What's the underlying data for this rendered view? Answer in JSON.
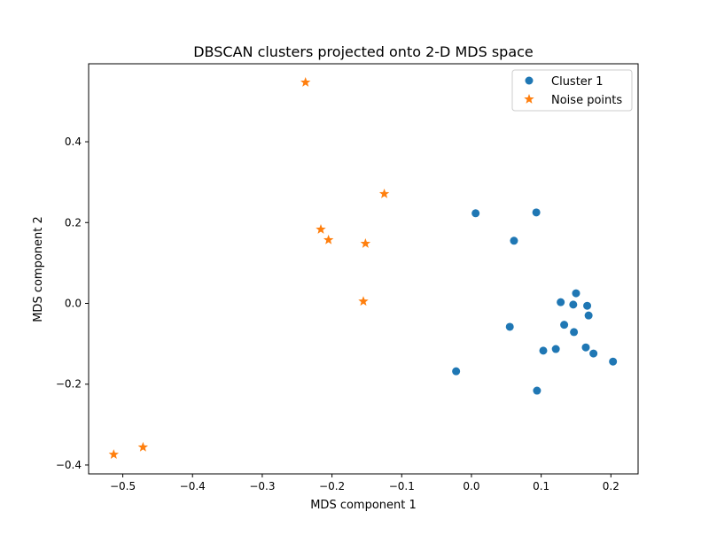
{
  "chart_data": {
    "type": "scatter",
    "title": "DBSCAN clusters projected onto 2-D MDS space",
    "xlabel": "MDS component 1",
    "ylabel": "MDS component 2",
    "xlim": [
      -0.549,
      0.239
    ],
    "ylim": [
      -0.422,
      0.593
    ],
    "xticks": [
      -0.5,
      -0.4,
      -0.3,
      -0.2,
      -0.1,
      0.0,
      0.1,
      0.2
    ],
    "xtick_labels": [
      "−0.5",
      "−0.4",
      "−0.3",
      "−0.2",
      "−0.1",
      "0.0",
      "0.1",
      "0.2"
    ],
    "yticks": [
      -0.4,
      -0.2,
      0.0,
      0.2,
      0.4
    ],
    "ytick_labels": [
      "−0.4",
      "−0.2",
      "0.0",
      "0.2",
      "0.4"
    ],
    "grid": false,
    "legend_position": "upper right",
    "series": [
      {
        "name": "Cluster 1",
        "marker": "circle",
        "color": "#1f77b4",
        "x": [
          0.006,
          0.093,
          0.061,
          0.15,
          0.128,
          0.146,
          0.166,
          0.168,
          0.133,
          0.055,
          0.147,
          0.103,
          0.121,
          0.164,
          0.175,
          0.203,
          -0.022,
          0.094
        ],
        "y": [
          0.223,
          0.225,
          0.155,
          0.025,
          0.003,
          -0.003,
          -0.006,
          -0.03,
          -0.053,
          -0.058,
          -0.071,
          -0.117,
          -0.113,
          -0.109,
          -0.124,
          -0.144,
          -0.168,
          -0.216
        ]
      },
      {
        "name": "Noise points",
        "marker": "star",
        "color": "#ff7f0e",
        "x": [
          -0.238,
          -0.125,
          -0.216,
          -0.205,
          -0.152,
          -0.155,
          -0.471,
          -0.513
        ],
        "y": [
          0.547,
          0.271,
          0.183,
          0.157,
          0.148,
          0.005,
          -0.356,
          -0.374
        ]
      }
    ]
  }
}
